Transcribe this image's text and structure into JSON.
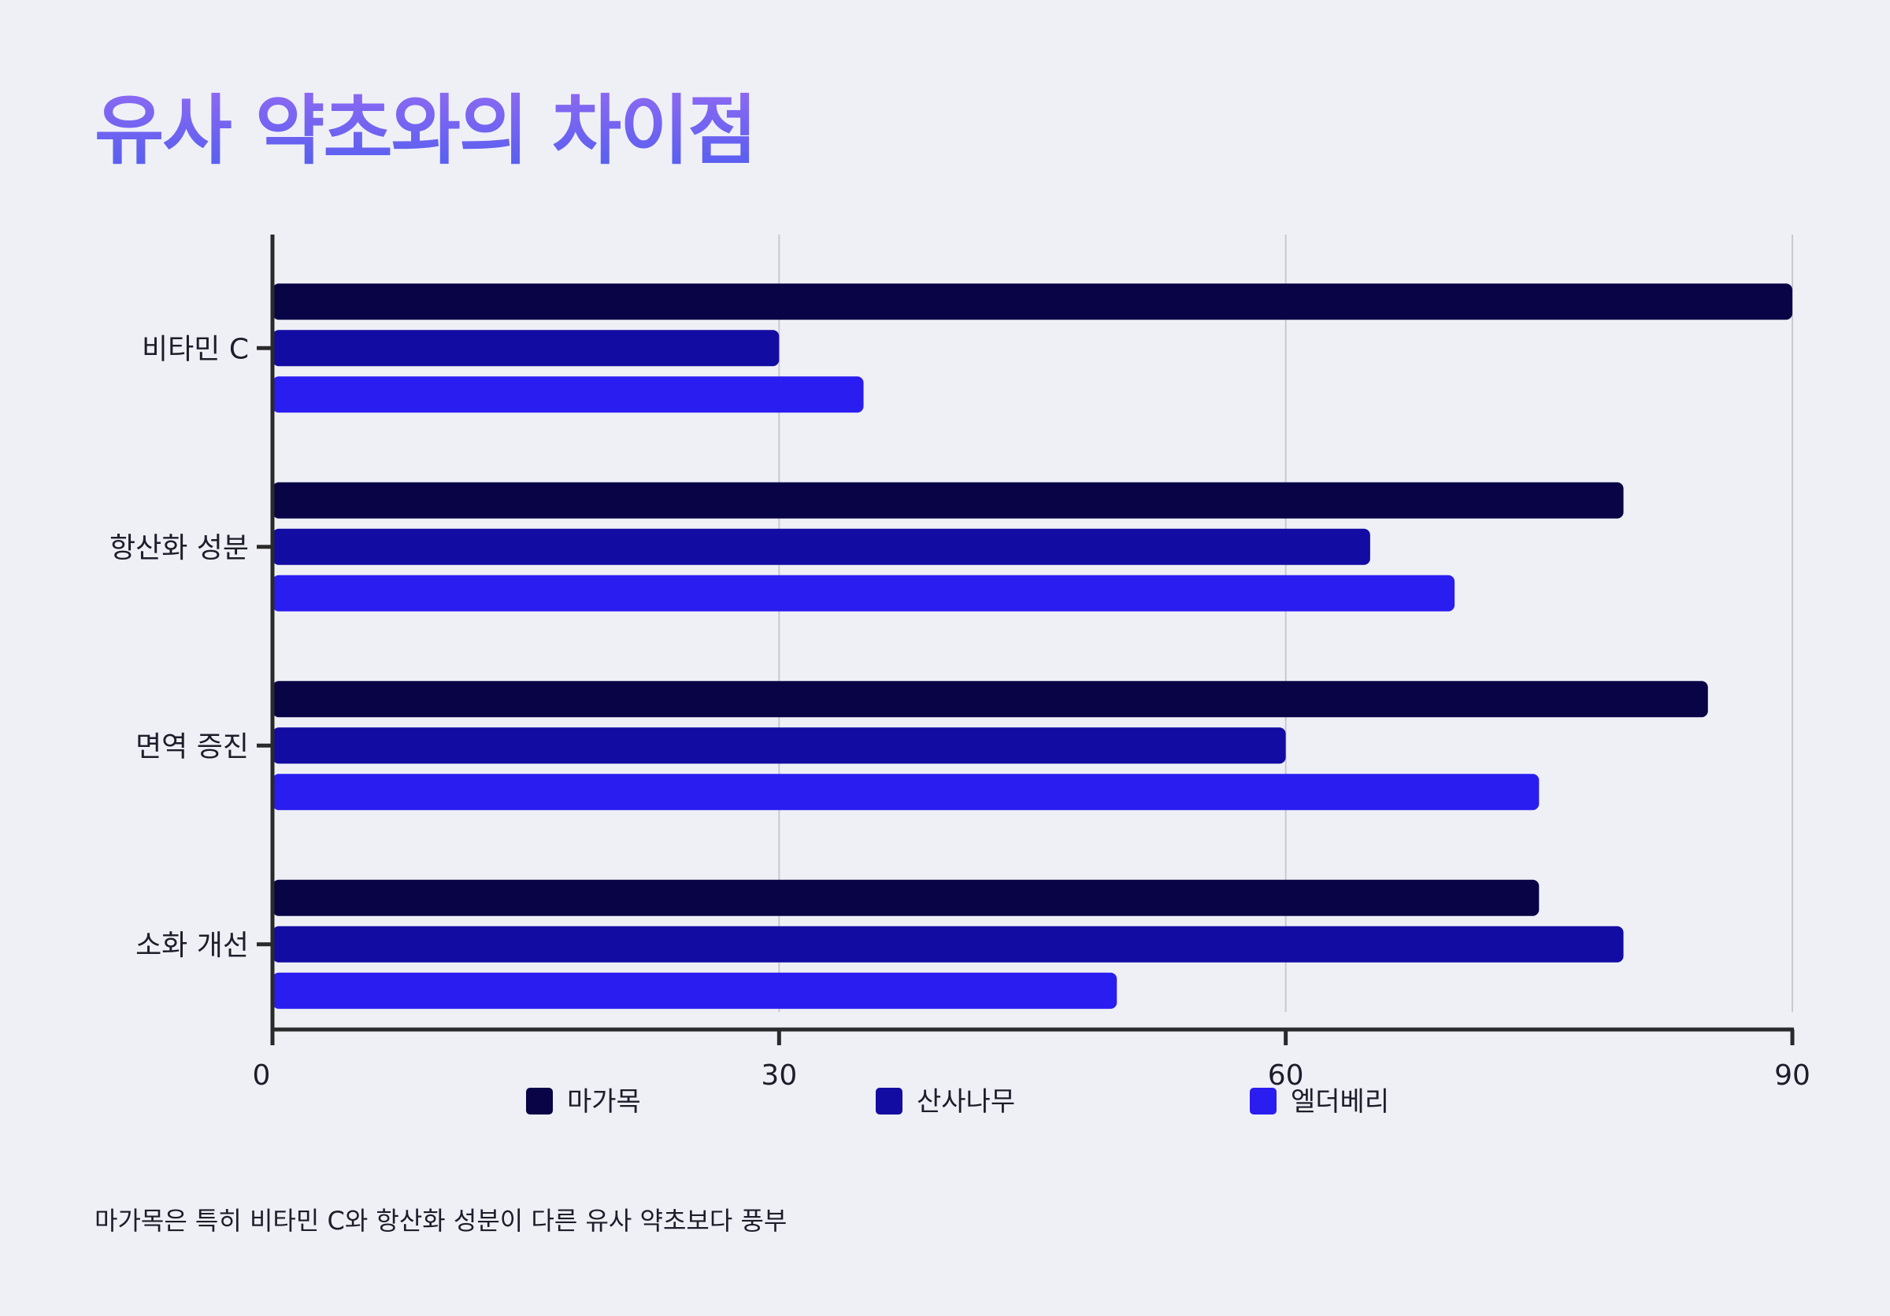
{
  "title": "유사 약초와의 차이점",
  "footnote": "마가목은 특히 비타민 C와 항산화 성분이 다른 유사 약초보다 풍부",
  "chart_data": {
    "type": "bar",
    "orientation": "horizontal",
    "categories": [
      "비타민 C",
      "항산화 성분",
      "면역 증진",
      "소화 개선"
    ],
    "series": [
      {
        "name": "마가목",
        "color": "#080446",
        "values": [
          90,
          80,
          85,
          75
        ]
      },
      {
        "name": "산사나무",
        "color": "#130ca2",
        "values": [
          30,
          65,
          60,
          80
        ]
      },
      {
        "name": "엘더베리",
        "color": "#2a1df0",
        "values": [
          35,
          70,
          75,
          50
        ]
      }
    ],
    "xlim": [
      0,
      90
    ],
    "xticks": [
      0,
      30,
      60,
      90
    ],
    "grid": true,
    "legend_position": "bottom"
  }
}
